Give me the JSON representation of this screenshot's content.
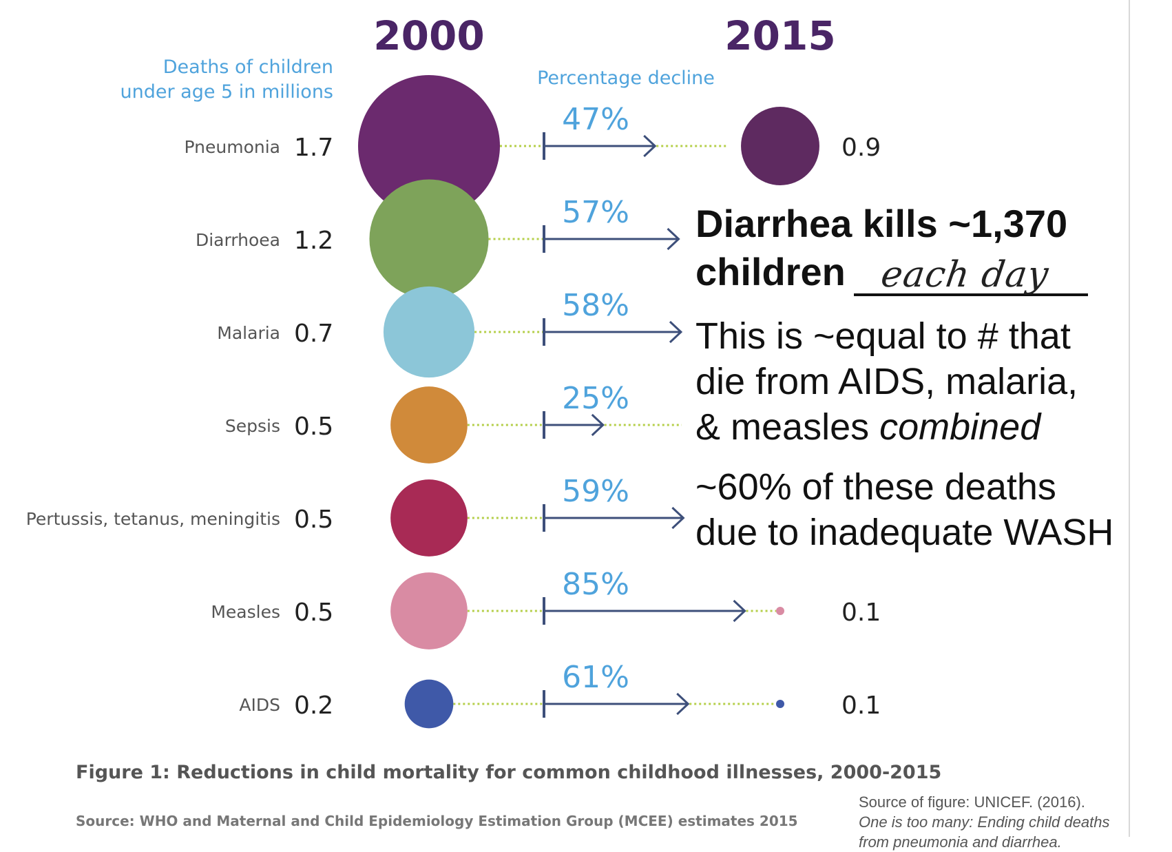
{
  "chart_data": {
    "type": "bubble",
    "column_headers": {
      "start": "2000",
      "end": "2015"
    },
    "left_axis_label": [
      "Deaths of children",
      "under age 5 in millions"
    ],
    "middle_label": "Percentage decline",
    "rows": [
      {
        "cause": "Pneumonia",
        "v2000": 1.7,
        "v2015": 0.9,
        "decline_pct": 47,
        "decline": "47%",
        "start_label": "1.7",
        "end_label": "0.9",
        "color": "#6b2a6e",
        "end_color": "#5e2a60"
      },
      {
        "cause": "Diarrhoea",
        "v2000": 1.2,
        "v2015": null,
        "decline_pct": 57,
        "decline": "57%",
        "start_label": "1.2",
        "end_label": "",
        "color": "#7ea35a",
        "end_color": "#7ea35a"
      },
      {
        "cause": "Malaria",
        "v2000": 0.7,
        "v2015": null,
        "decline_pct": 58,
        "decline": "58%",
        "start_label": "0.7",
        "end_label": "",
        "color": "#8cc6d8",
        "end_color": "#8cc6d8"
      },
      {
        "cause": "Sepsis",
        "v2000": 0.5,
        "v2015": null,
        "decline_pct": 25,
        "decline": "25%",
        "start_label": "0.5",
        "end_label": "",
        "color": "#d08a3a",
        "end_color": "#d08a3a"
      },
      {
        "cause": "Pertussis, tetanus, meningitis",
        "v2000": 0.5,
        "v2015": null,
        "decline_pct": 59,
        "decline": "59%",
        "start_label": "0.5",
        "end_label": "",
        "color": "#a82a55",
        "end_color": "#a82a55"
      },
      {
        "cause": "Measles",
        "v2000": 0.5,
        "v2015": 0.1,
        "decline_pct": 85,
        "decline": "85%",
        "start_label": "0.5",
        "end_label": "0.1",
        "color": "#d98ba3",
        "end_color": "#d98ba3"
      },
      {
        "cause": "AIDS",
        "v2000": 0.2,
        "v2015": 0.1,
        "decline_pct": 61,
        "decline": "61%",
        "start_label": "0.2",
        "end_label": "0.1",
        "color": "#3f59a8",
        "end_color": "#3f59a8"
      }
    ],
    "caption": "Figure 1: Reductions in child mortality for common childhood illnesses, 2000-2015",
    "source": "Source: WHO and Maternal and Child Epidemiology Estimation Group (MCEE) estimates 2015",
    "colors": {
      "header": "#4a2566",
      "accent_blue": "#4fa3dc",
      "arrow": "#3d4f7a",
      "dotted": "#b5cf4a",
      "label_gray": "#555555"
    }
  },
  "notes": {
    "headline_line1": "Diarrhea kills ~1,370",
    "headline_line2": "children",
    "handwritten": "each day",
    "equal_line1": "This is ~equal to # that",
    "equal_line2": "die from AIDS, malaria,",
    "equal_line3_plain": "& measles ",
    "equal_line3_italic": "combined",
    "wash_line1": "~60% of these deaths",
    "wash_line2": "due to inadequate WASH"
  },
  "figure_source": {
    "line1": "Source of figure: UNICEF. (2016).",
    "line2": "One is too many: Ending child deaths",
    "line3": "from pneumonia and diarrhea."
  }
}
